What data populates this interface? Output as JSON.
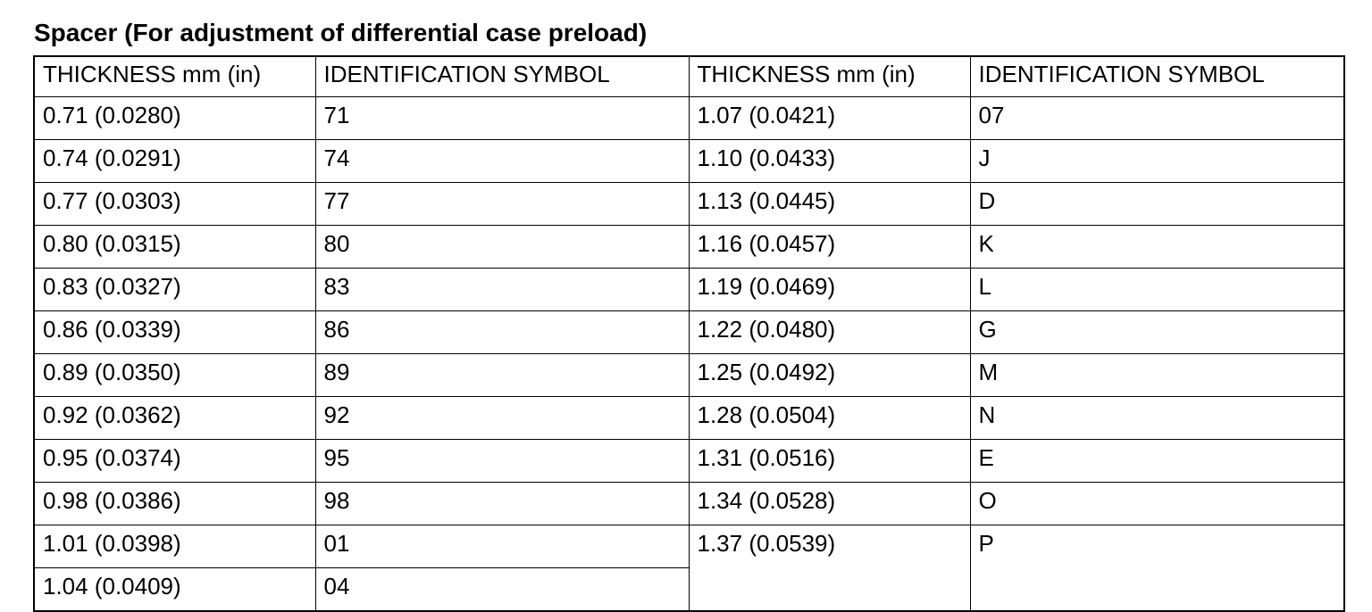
{
  "title": "Spacer (For adjustment of differential case preload)",
  "headers": [
    "THICKNESS mm (in)",
    "IDENTIFICATION SYMBOL",
    "THICKNESS mm (in)",
    "IDENTIFICATION SYMBOL"
  ],
  "left_rows": [
    {
      "thickness": "0.71 (0.0280)",
      "symbol": "71"
    },
    {
      "thickness": "0.74 (0.0291)",
      "symbol": "74"
    },
    {
      "thickness": "0.77 (0.0303)",
      "symbol": "77"
    },
    {
      "thickness": "0.80 (0.0315)",
      "symbol": "80"
    },
    {
      "thickness": "0.83 (0.0327)",
      "symbol": "83"
    },
    {
      "thickness": "0.86 (0.0339)",
      "symbol": "86"
    },
    {
      "thickness": "0.89 (0.0350)",
      "symbol": "89"
    },
    {
      "thickness": "0.92 (0.0362)",
      "symbol": "92"
    },
    {
      "thickness": "0.95 (0.0374)",
      "symbol": "95"
    },
    {
      "thickness": "0.98 (0.0386)",
      "symbol": "98"
    },
    {
      "thickness": "1.01 (0.0398)",
      "symbol": "01"
    },
    {
      "thickness": "1.04 (0.0409)",
      "symbol": "04"
    }
  ],
  "right_rows": [
    {
      "thickness": "1.07 (0.0421)",
      "symbol": "07"
    },
    {
      "thickness": "1.10 (0.0433)",
      "symbol": "J"
    },
    {
      "thickness": "1.13 (0.0445)",
      "symbol": "D"
    },
    {
      "thickness": "1.16 (0.0457)",
      "symbol": "K"
    },
    {
      "thickness": "1.19 (0.0469)",
      "symbol": "L"
    },
    {
      "thickness": "1.22 (0.0480)",
      "symbol": "G"
    },
    {
      "thickness": "1.25 (0.0492)",
      "symbol": "M"
    },
    {
      "thickness": "1.28 (0.0504)",
      "symbol": "N"
    },
    {
      "thickness": "1.31 (0.0516)",
      "symbol": "E"
    },
    {
      "thickness": "1.34 (0.0528)",
      "symbol": "O"
    },
    {
      "thickness": "1.37 (0.0539)",
      "symbol": "P"
    }
  ]
}
